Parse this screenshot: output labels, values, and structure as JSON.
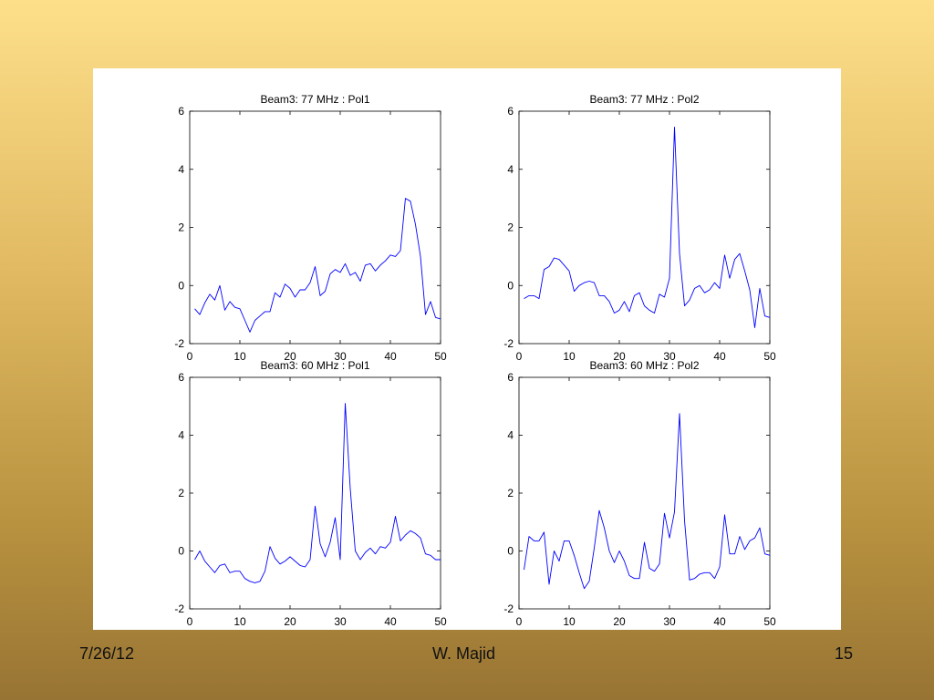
{
  "footer": {
    "date": "7/26/12",
    "author": "W. Majid",
    "page_number": "15"
  },
  "colors": {
    "line": "#0000ff",
    "axes": "#000000",
    "panel": "#ffffff"
  },
  "chart_data": [
    {
      "type": "line",
      "title": "Beam3: 77 MHz : Pol1",
      "xlabel": "",
      "ylabel": "",
      "xlim": [
        0,
        50
      ],
      "ylim": [
        -2,
        6
      ],
      "xticks": [
        0,
        10,
        20,
        30,
        40,
        50
      ],
      "yticks": [
        -2,
        0,
        2,
        4,
        6
      ],
      "grid": false,
      "x": [
        1,
        2,
        3,
        4,
        5,
        6,
        7,
        8,
        9,
        10,
        11,
        12,
        13,
        14,
        15,
        16,
        17,
        18,
        19,
        20,
        21,
        22,
        23,
        24,
        25,
        26,
        27,
        28,
        29,
        30,
        31,
        32,
        33,
        34,
        35,
        36,
        37,
        38,
        39,
        40,
        41,
        42,
        43,
        44,
        45,
        46,
        47,
        48,
        49,
        50
      ],
      "y": [
        -0.8,
        -1.0,
        -0.6,
        -0.3,
        -0.5,
        0.0,
        -0.85,
        -0.55,
        -0.75,
        -0.8,
        -1.2,
        -1.6,
        -1.2,
        -1.05,
        -0.9,
        -0.9,
        -0.25,
        -0.4,
        0.05,
        -0.1,
        -0.4,
        -0.15,
        -0.15,
        0.1,
        0.65,
        -0.35,
        -0.2,
        0.4,
        0.55,
        0.45,
        0.75,
        0.35,
        0.45,
        0.15,
        0.7,
        0.75,
        0.5,
        0.7,
        0.85,
        1.05,
        1.0,
        1.2,
        3.0,
        2.9,
        2.1,
        1.0,
        -1.0,
        -0.55,
        -1.1,
        -1.15
      ]
    },
    {
      "type": "line",
      "title": "Beam3: 77 MHz : Pol2",
      "xlabel": "",
      "ylabel": "",
      "xlim": [
        0,
        50
      ],
      "ylim": [
        -2,
        6
      ],
      "xticks": [
        0,
        10,
        20,
        30,
        40,
        50
      ],
      "yticks": [
        -2,
        0,
        2,
        4,
        6
      ],
      "grid": false,
      "x": [
        1,
        2,
        3,
        4,
        5,
        6,
        7,
        8,
        9,
        10,
        11,
        12,
        13,
        14,
        15,
        16,
        17,
        18,
        19,
        20,
        21,
        22,
        23,
        24,
        25,
        26,
        27,
        28,
        29,
        30,
        31,
        32,
        33,
        34,
        35,
        36,
        37,
        38,
        39,
        40,
        41,
        42,
        43,
        44,
        45,
        46,
        47,
        48,
        49,
        50
      ],
      "y": [
        -0.45,
        -0.35,
        -0.35,
        -0.45,
        0.55,
        0.65,
        0.95,
        0.9,
        0.7,
        0.5,
        -0.2,
        0.0,
        0.1,
        0.15,
        0.1,
        -0.35,
        -0.35,
        -0.55,
        -0.95,
        -0.85,
        -0.55,
        -0.9,
        -0.35,
        -0.25,
        -0.7,
        -0.85,
        -0.95,
        -0.3,
        -0.4,
        0.25,
        5.45,
        1.1,
        -0.7,
        -0.5,
        -0.1,
        0.0,
        -0.25,
        -0.15,
        0.1,
        -0.1,
        1.05,
        0.25,
        0.9,
        1.1,
        0.5,
        -0.15,
        -1.45,
        -0.1,
        -1.05,
        -1.1
      ]
    },
    {
      "type": "line",
      "title": "Beam3: 60 MHz : Pol1",
      "xlabel": "",
      "ylabel": "",
      "xlim": [
        0,
        50
      ],
      "ylim": [
        -2,
        6
      ],
      "xticks": [
        0,
        10,
        20,
        30,
        40,
        50
      ],
      "yticks": [
        -2,
        0,
        2,
        4,
        6
      ],
      "grid": false,
      "x": [
        1,
        2,
        3,
        4,
        5,
        6,
        7,
        8,
        9,
        10,
        11,
        12,
        13,
        14,
        15,
        16,
        17,
        18,
        19,
        20,
        21,
        22,
        23,
        24,
        25,
        26,
        27,
        28,
        29,
        30,
        31,
        32,
        33,
        34,
        35,
        36,
        37,
        38,
        39,
        40,
        41,
        42,
        43,
        44,
        45,
        46,
        47,
        48,
        49,
        50
      ],
      "y": [
        -0.3,
        0.0,
        -0.35,
        -0.55,
        -0.75,
        -0.5,
        -0.45,
        -0.75,
        -0.7,
        -0.7,
        -0.95,
        -1.05,
        -1.1,
        -1.05,
        -0.7,
        0.15,
        -0.25,
        -0.45,
        -0.35,
        -0.2,
        -0.35,
        -0.5,
        -0.55,
        -0.3,
        1.55,
        0.25,
        -0.2,
        0.3,
        1.15,
        -0.3,
        5.1,
        2.15,
        0.0,
        -0.3,
        -0.05,
        0.1,
        -0.1,
        0.15,
        0.1,
        0.3,
        1.2,
        0.35,
        0.55,
        0.7,
        0.6,
        0.45,
        -0.1,
        -0.15,
        -0.3,
        -0.3
      ]
    },
    {
      "type": "line",
      "title": "Beam3: 60 MHz : Pol2",
      "xlabel": "",
      "ylabel": "",
      "xlim": [
        0,
        50
      ],
      "ylim": [
        -2,
        6
      ],
      "xticks": [
        0,
        10,
        20,
        30,
        40,
        50
      ],
      "yticks": [
        -2,
        0,
        2,
        4,
        6
      ],
      "grid": false,
      "x": [
        1,
        2,
        3,
        4,
        5,
        6,
        7,
        8,
        9,
        10,
        11,
        12,
        13,
        14,
        15,
        16,
        17,
        18,
        19,
        20,
        21,
        22,
        23,
        24,
        25,
        26,
        27,
        28,
        29,
        30,
        31,
        32,
        33,
        34,
        35,
        36,
        37,
        38,
        39,
        40,
        41,
        42,
        43,
        44,
        45,
        46,
        47,
        48,
        49,
        50
      ],
      "y": [
        -0.65,
        0.5,
        0.35,
        0.35,
        0.65,
        -1.15,
        0.0,
        -0.35,
        0.35,
        0.35,
        -0.15,
        -0.75,
        -1.3,
        -1.05,
        0.1,
        1.4,
        0.8,
        0.0,
        -0.4,
        0.0,
        -0.35,
        -0.85,
        -0.95,
        -0.95,
        0.3,
        -0.6,
        -0.7,
        -0.45,
        1.3,
        0.45,
        1.35,
        4.75,
        1.05,
        -1.0,
        -0.95,
        -0.8,
        -0.75,
        -0.75,
        -0.95,
        -0.55,
        1.25,
        -0.1,
        -0.1,
        0.5,
        0.05,
        0.35,
        0.45,
        0.8,
        -0.1,
        -0.15
      ]
    }
  ]
}
